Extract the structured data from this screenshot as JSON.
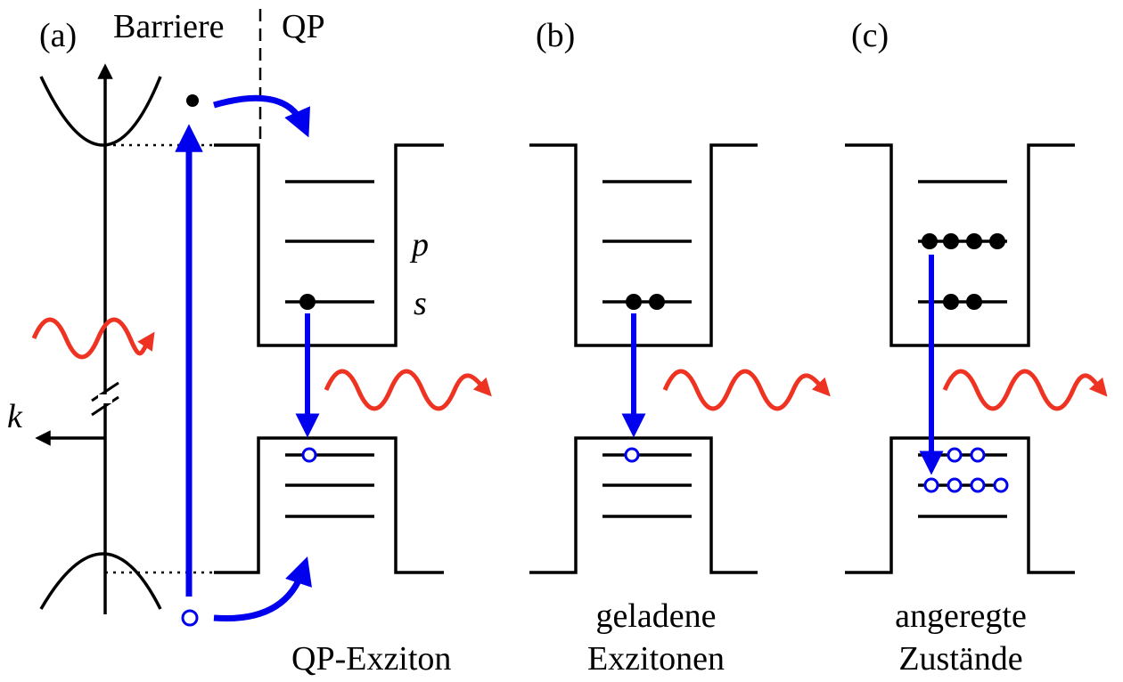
{
  "panels": {
    "a": {
      "letter": "(a)",
      "barrier_label": "Barriere",
      "dot_label": "QP",
      "level_p": "p",
      "level_s": "s",
      "k_label": "k",
      "caption": "QP-Exziton"
    },
    "b": {
      "letter": "(b)",
      "caption_line1": "geladene",
      "caption_line2": "Exzitonen"
    },
    "c": {
      "letter": "(c)",
      "caption_line1": "angeregte",
      "caption_line2": "Zustände"
    }
  },
  "colors": {
    "transition": "#0000ee",
    "photon": "#ee3322",
    "structure": "#000000"
  }
}
